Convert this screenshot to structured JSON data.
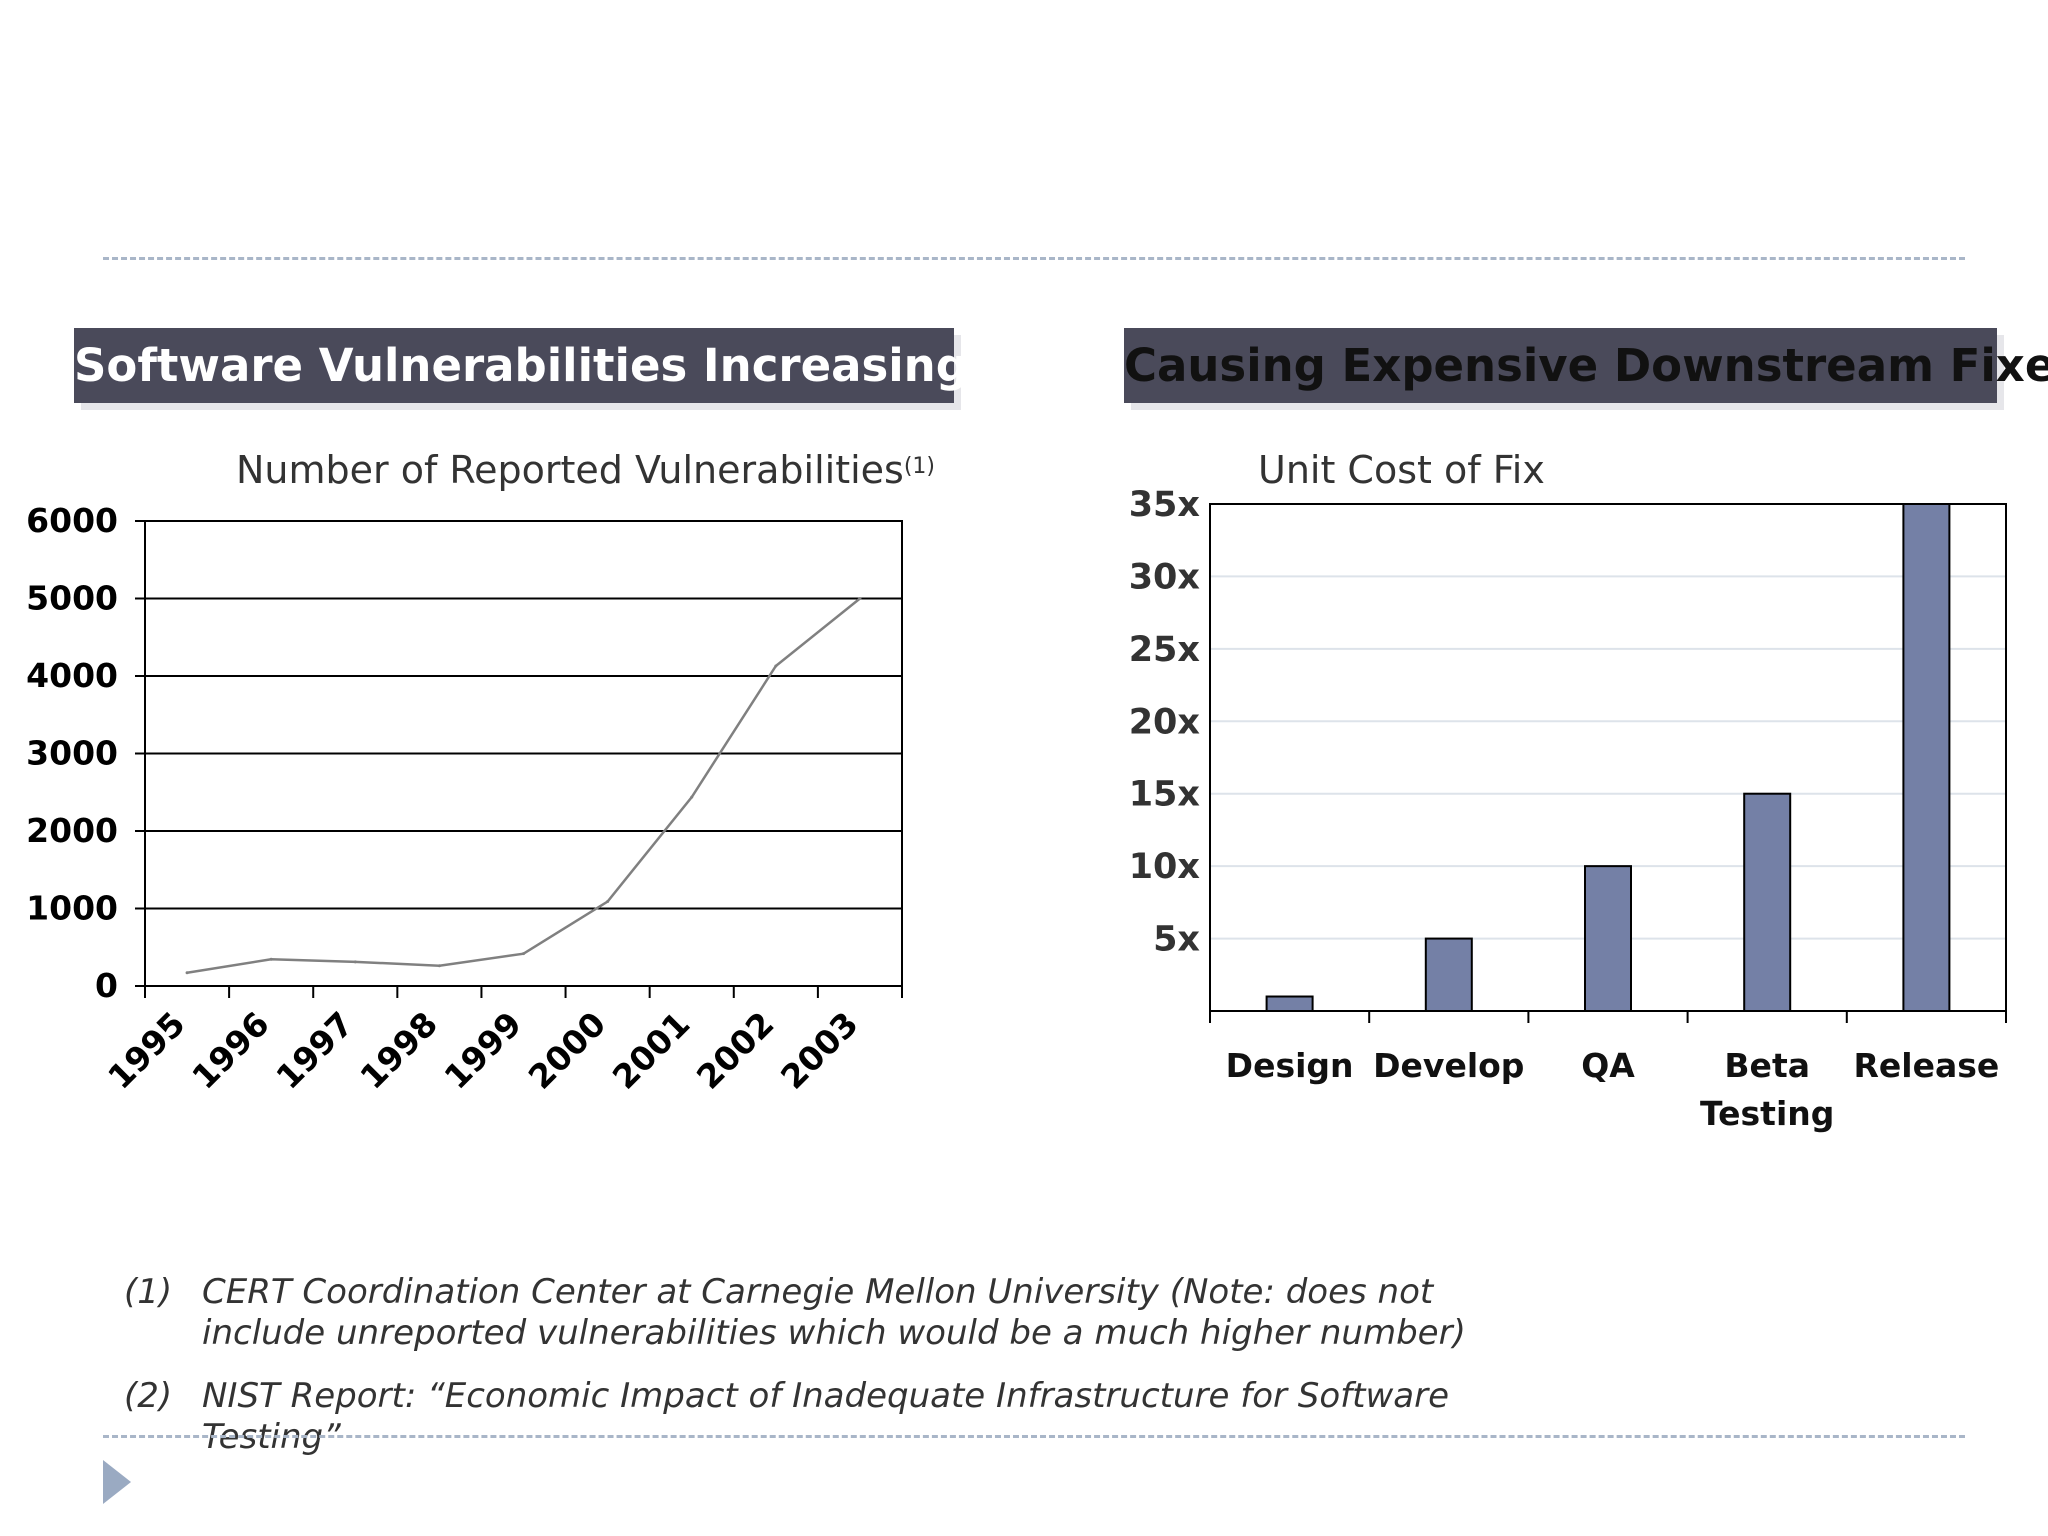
{
  "left_panel": {
    "header": "Software Vulnerabilities Increasing"
  },
  "right_panel": {
    "header": "Causing Expensive Downstream Fixes"
  },
  "chart_data": [
    {
      "type": "line",
      "title": "Number of Reported Vulnerabilities",
      "title_footnote": "(1)",
      "categories": [
        "1995",
        "1996",
        "1997",
        "1998",
        "1999",
        "2000",
        "2001",
        "2002",
        "2003"
      ],
      "values": [
        171,
        345,
        311,
        262,
        417,
        1090,
        2437,
        4129,
        5000
      ],
      "ylim": [
        0,
        6000
      ],
      "yticks": [
        "0",
        "1000",
        "2000",
        "3000",
        "4000",
        "5000",
        "6000"
      ],
      "xlabel": "",
      "ylabel": "",
      "grid": true,
      "line_color": "#808080"
    },
    {
      "type": "bar",
      "title": "Unit Cost of Fix",
      "categories": [
        "Design",
        "Develop",
        "QA",
        "Beta Testing",
        "Release"
      ],
      "values": [
        1,
        5,
        10,
        15,
        35
      ],
      "ylim": [
        0,
        35
      ],
      "yticks": [
        "5x",
        "10x",
        "15x",
        "20x",
        "25x",
        "30x",
        "35x"
      ],
      "xlabel": "",
      "ylabel": "",
      "grid": true,
      "bar_color": "#7480a6"
    }
  ],
  "footnotes": [
    {
      "num": "(1)",
      "text": "CERT Coordination Center at Carnegie Mellon University (Note: does not include unreported vulnerabilities which would be a much higher number)"
    },
    {
      "num": "(2)",
      "text": "NIST Report: “Economic Impact of Inadequate Infrastructure for Software Testing”"
    }
  ]
}
